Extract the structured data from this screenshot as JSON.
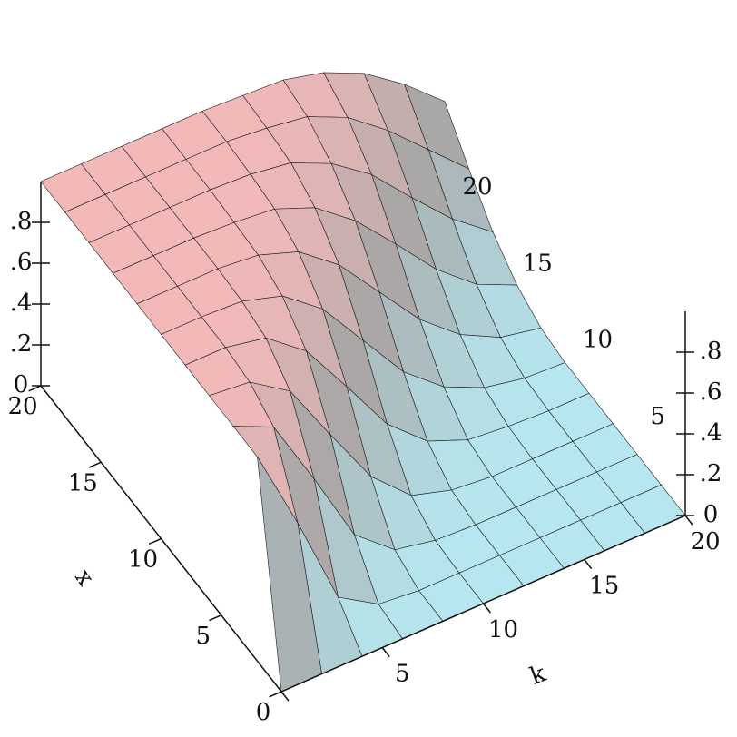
{
  "chart_data": {
    "type": "surface",
    "xlabel": "x",
    "ylabel": "k",
    "x_values": [
      0,
      2,
      4,
      6,
      8,
      10,
      12,
      14,
      16,
      18,
      20
    ],
    "y_values": [
      0,
      2,
      4,
      6,
      8,
      10,
      12,
      14,
      16,
      18,
      20
    ],
    "z": [
      [
        0,
        0,
        0,
        0,
        0,
        0,
        0,
        0,
        0,
        0,
        0
      ],
      [
        1,
        0.59,
        0.14,
        0.02,
        0,
        0,
        0,
        0,
        0,
        0,
        0
      ],
      [
        1,
        0.91,
        0.57,
        0.21,
        0.05,
        0.01,
        0,
        0,
        0,
        0,
        0
      ],
      [
        1,
        0.98,
        0.85,
        0.55,
        0.26,
        0.08,
        0.02,
        0,
        0,
        0,
        0
      ],
      [
        1,
        1,
        0.96,
        0.81,
        0.55,
        0.28,
        0.11,
        0.03,
        0.01,
        0,
        0
      ],
      [
        1,
        1,
        0.99,
        0.93,
        0.78,
        0.54,
        0.3,
        0.14,
        0.05,
        0.01,
        0
      ],
      [
        1,
        1,
        1,
        0.98,
        0.91,
        0.76,
        0.54,
        0.32,
        0.16,
        0.06,
        0.02
      ],
      [
        1,
        1,
        1,
        0.99,
        0.97,
        0.89,
        0.74,
        0.54,
        0.33,
        0.17,
        0.08
      ],
      [
        1,
        1,
        1,
        1,
        0.99,
        0.96,
        0.87,
        0.73,
        0.53,
        0.34,
        0.19
      ],
      [
        1,
        1,
        1,
        1,
        1,
        0.98,
        0.95,
        0.86,
        0.71,
        0.53,
        0.35
      ],
      [
        1,
        1,
        1,
        1,
        1,
        0.99,
        0.98,
        0.93,
        0.84,
        0.7,
        0.53
      ]
    ],
    "xlim": [
      0,
      20
    ],
    "xticks": [
      0,
      5,
      10,
      15,
      20
    ],
    "ylim": [
      0,
      20
    ],
    "yticks": [
      0,
      5,
      10,
      15,
      20
    ],
    "zlim": [
      0,
      1
    ],
    "zticks": [
      0,
      {
        "value": 0.2,
        "label": ".2"
      },
      {
        "value": 0.4,
        "label": ".4"
      },
      {
        "value": 0.6,
        "label": ".6"
      },
      {
        "value": 0.8,
        "label": ".8"
      }
    ],
    "colormap": [
      "#b6e6ef",
      "#a6a6a6",
      "#f3b9b9"
    ]
  }
}
